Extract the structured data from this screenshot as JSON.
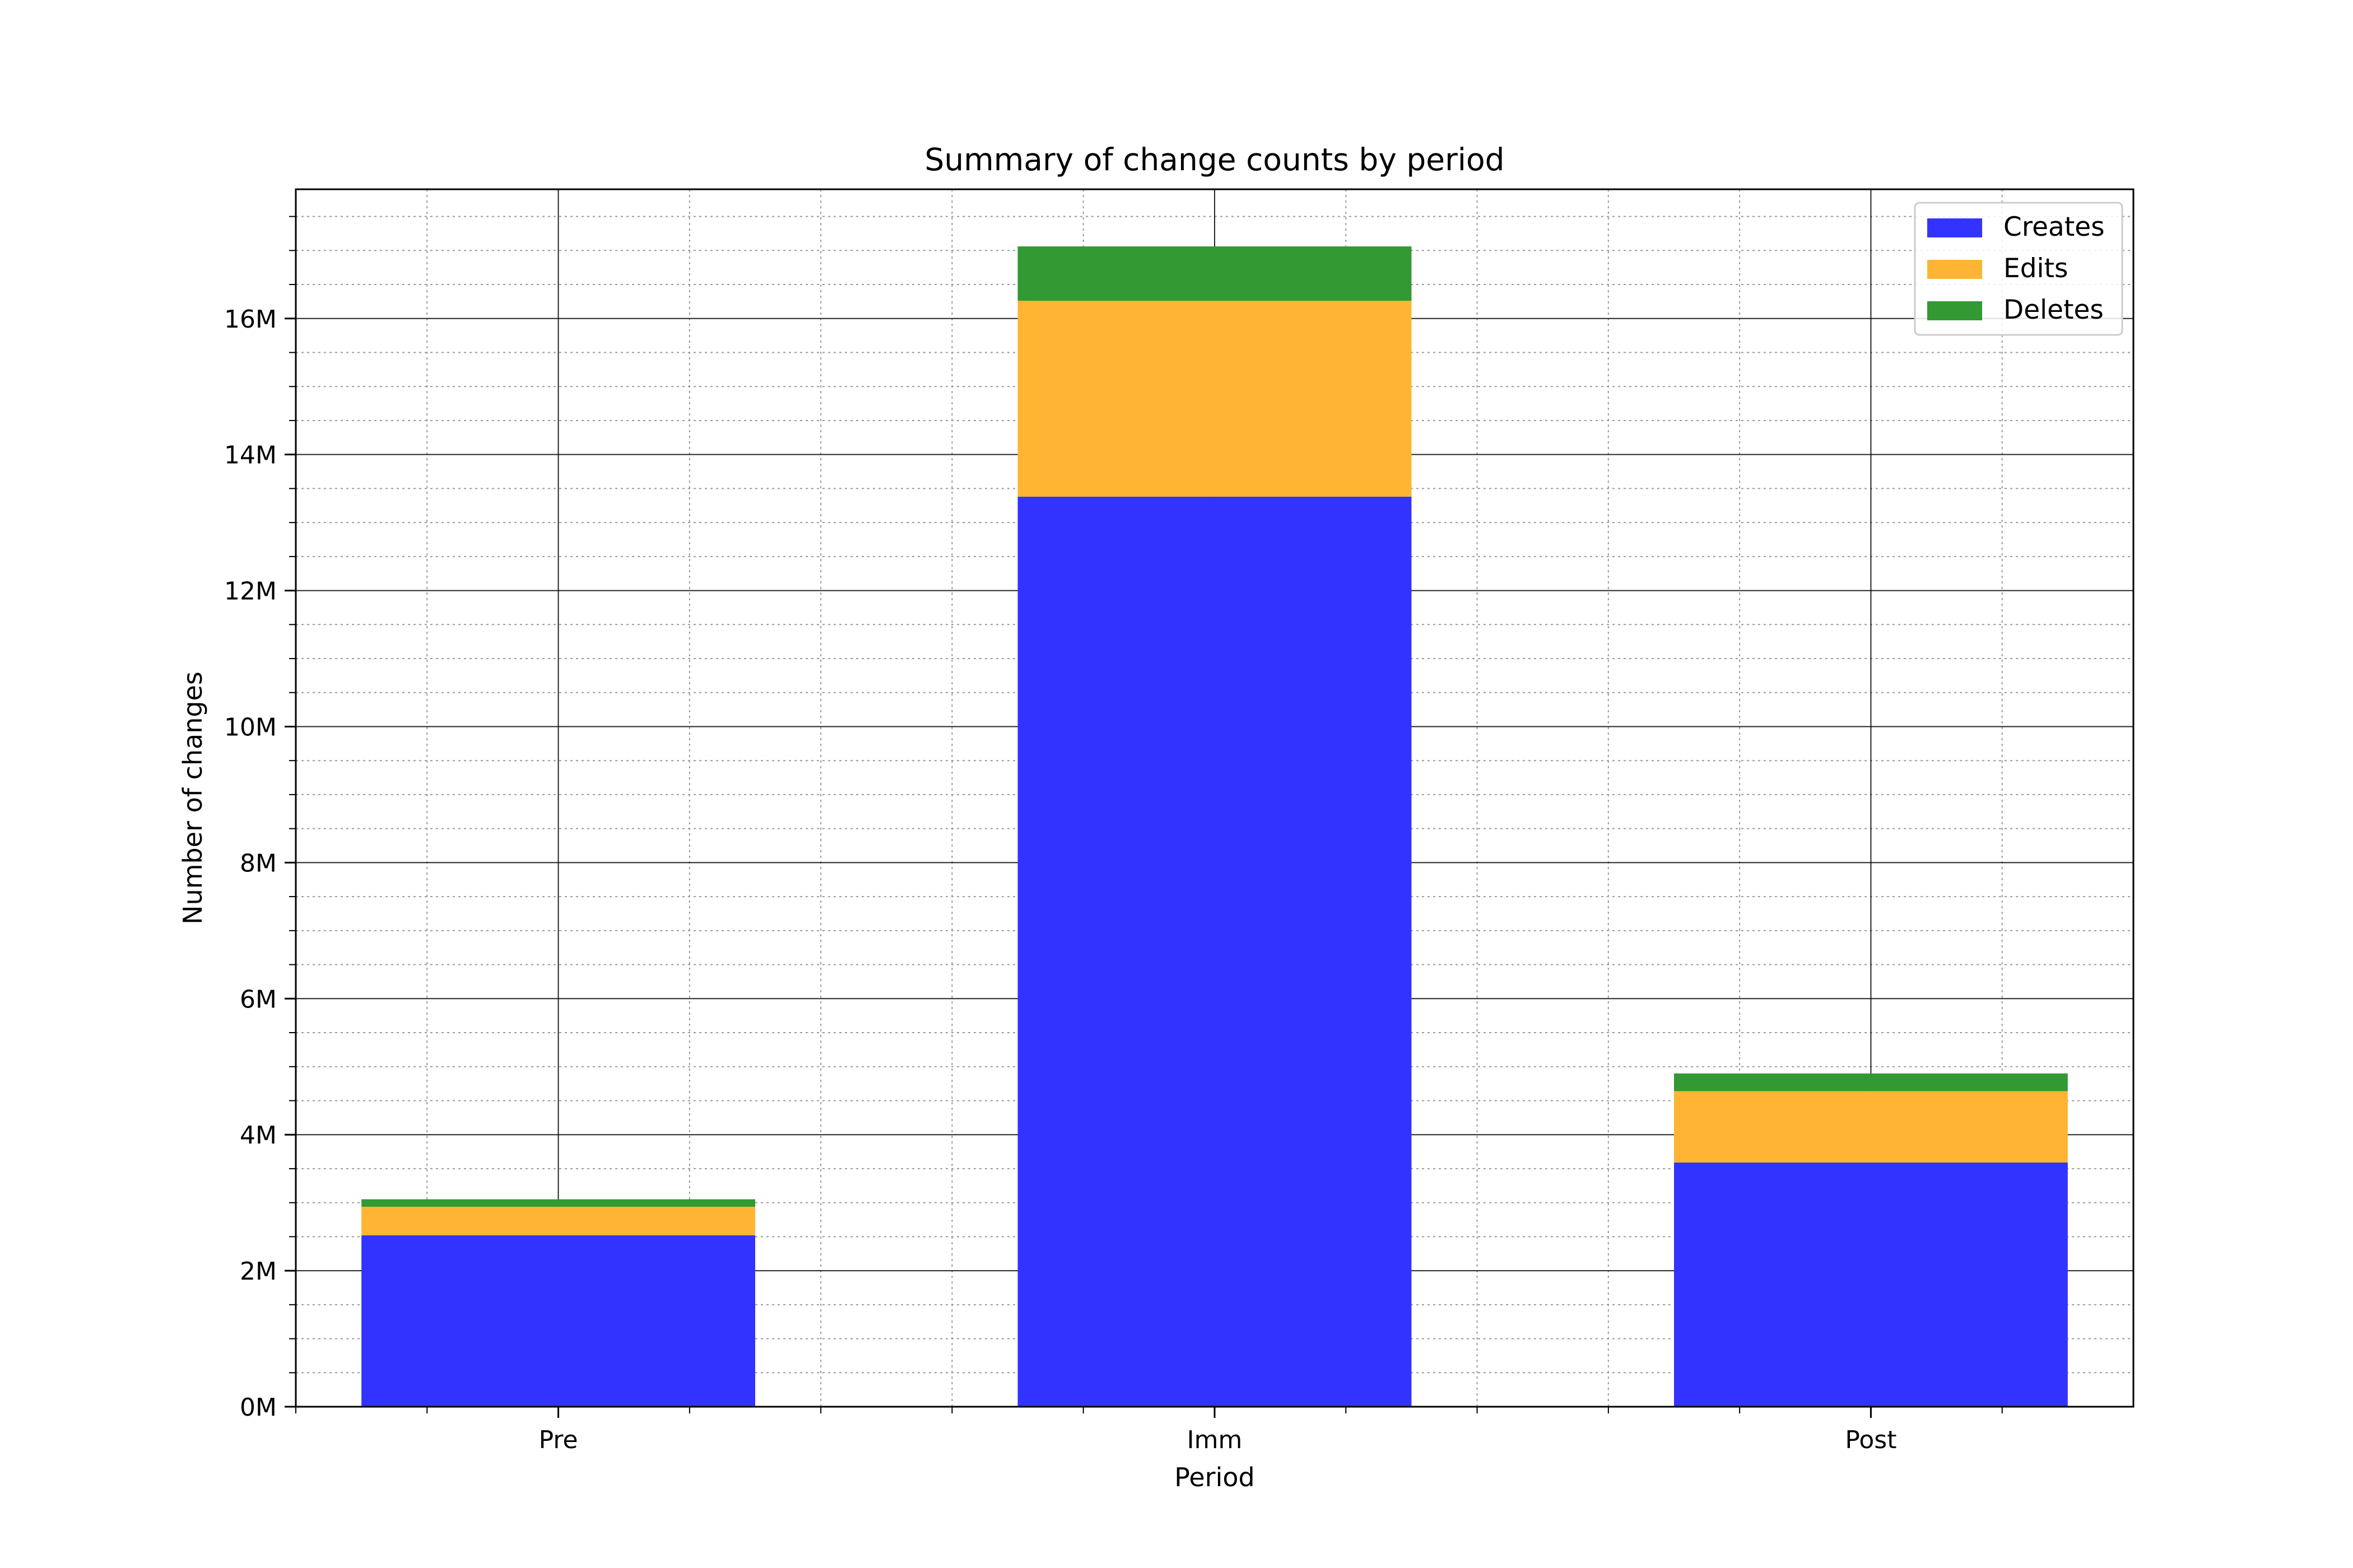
{
  "chart_data": {
    "type": "bar",
    "stacked": true,
    "title": "Summary of change counts by period",
    "xlabel": "Period",
    "ylabel": "Number of changes",
    "categories": [
      "Pre",
      "Imm",
      "Post"
    ],
    "series": [
      {
        "name": "Creates",
        "color": "#3333ff",
        "values": [
          2520000,
          13380000,
          3590000
        ]
      },
      {
        "name": "Edits",
        "color": "#ffb533",
        "values": [
          420000,
          2880000,
          1050000
        ]
      },
      {
        "name": "Deletes",
        "color": "#339933",
        "values": [
          110000,
          800000,
          260000
        ]
      }
    ],
    "ylim": [
      0,
      17900000
    ],
    "y_ticks": [
      0,
      2000000,
      4000000,
      6000000,
      8000000,
      10000000,
      12000000,
      14000000,
      16000000
    ],
    "y_tick_labels": [
      "0M",
      "2M",
      "4M",
      "6M",
      "8M",
      "10M",
      "12M",
      "14M",
      "16M"
    ],
    "grid": true,
    "minor_grid": true,
    "legend_position": "top-right"
  }
}
